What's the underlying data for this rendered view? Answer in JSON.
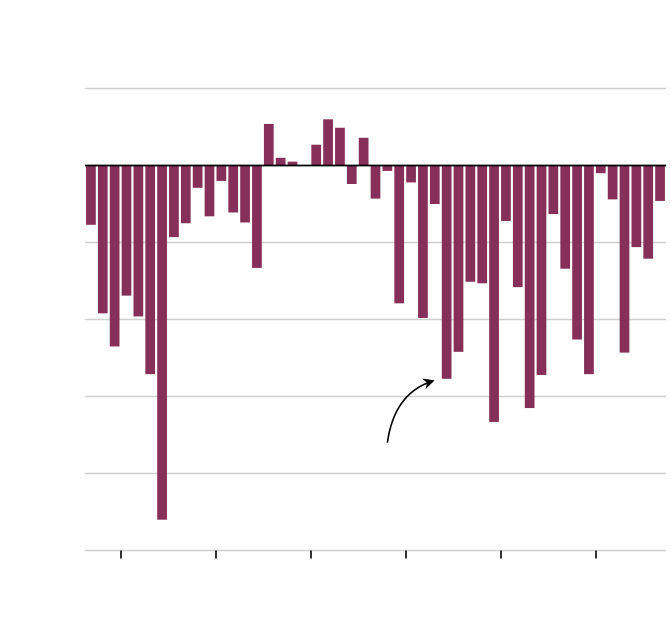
{
  "chart_data": {
    "type": "bar",
    "title": "",
    "xlabel": "",
    "ylabel": "",
    "ylim": [
      -5,
      1
    ],
    "yticks": [
      1,
      0,
      -1,
      -2,
      -3,
      -4,
      -5
    ],
    "xtick_count": 6,
    "grid": true,
    "legend": "none",
    "bar_color": "#862f58",
    "grid_color": "#d0d0d0",
    "axis_color": "#000000",
    "values": [
      -0.77,
      -1.92,
      -2.35,
      -1.69,
      -1.96,
      -2.71,
      -4.6,
      -0.93,
      -0.75,
      -0.29,
      -0.66,
      -0.2,
      -0.61,
      -0.74,
      -1.33,
      0.54,
      0.1,
      0.05,
      0,
      0.27,
      0.6,
      0.49,
      -0.24,
      0.36,
      -0.43,
      -0.07,
      -1.79,
      -0.22,
      -1.98,
      -0.5,
      -2.77,
      -2.42,
      -1.51,
      -1.53,
      -3.33,
      -0.72,
      -1.58,
      -3.15,
      -2.72,
      -0.63,
      -1.34,
      -2.26,
      -2.71,
      -0.1,
      -0.44,
      -2.43,
      -1.06,
      -1.21,
      -0.46
    ],
    "annotation": {
      "type": "curved-arrow",
      "from_index": 25.5,
      "from_value": -3.6,
      "to_index": 29.3,
      "to_value": -2.8
    }
  }
}
